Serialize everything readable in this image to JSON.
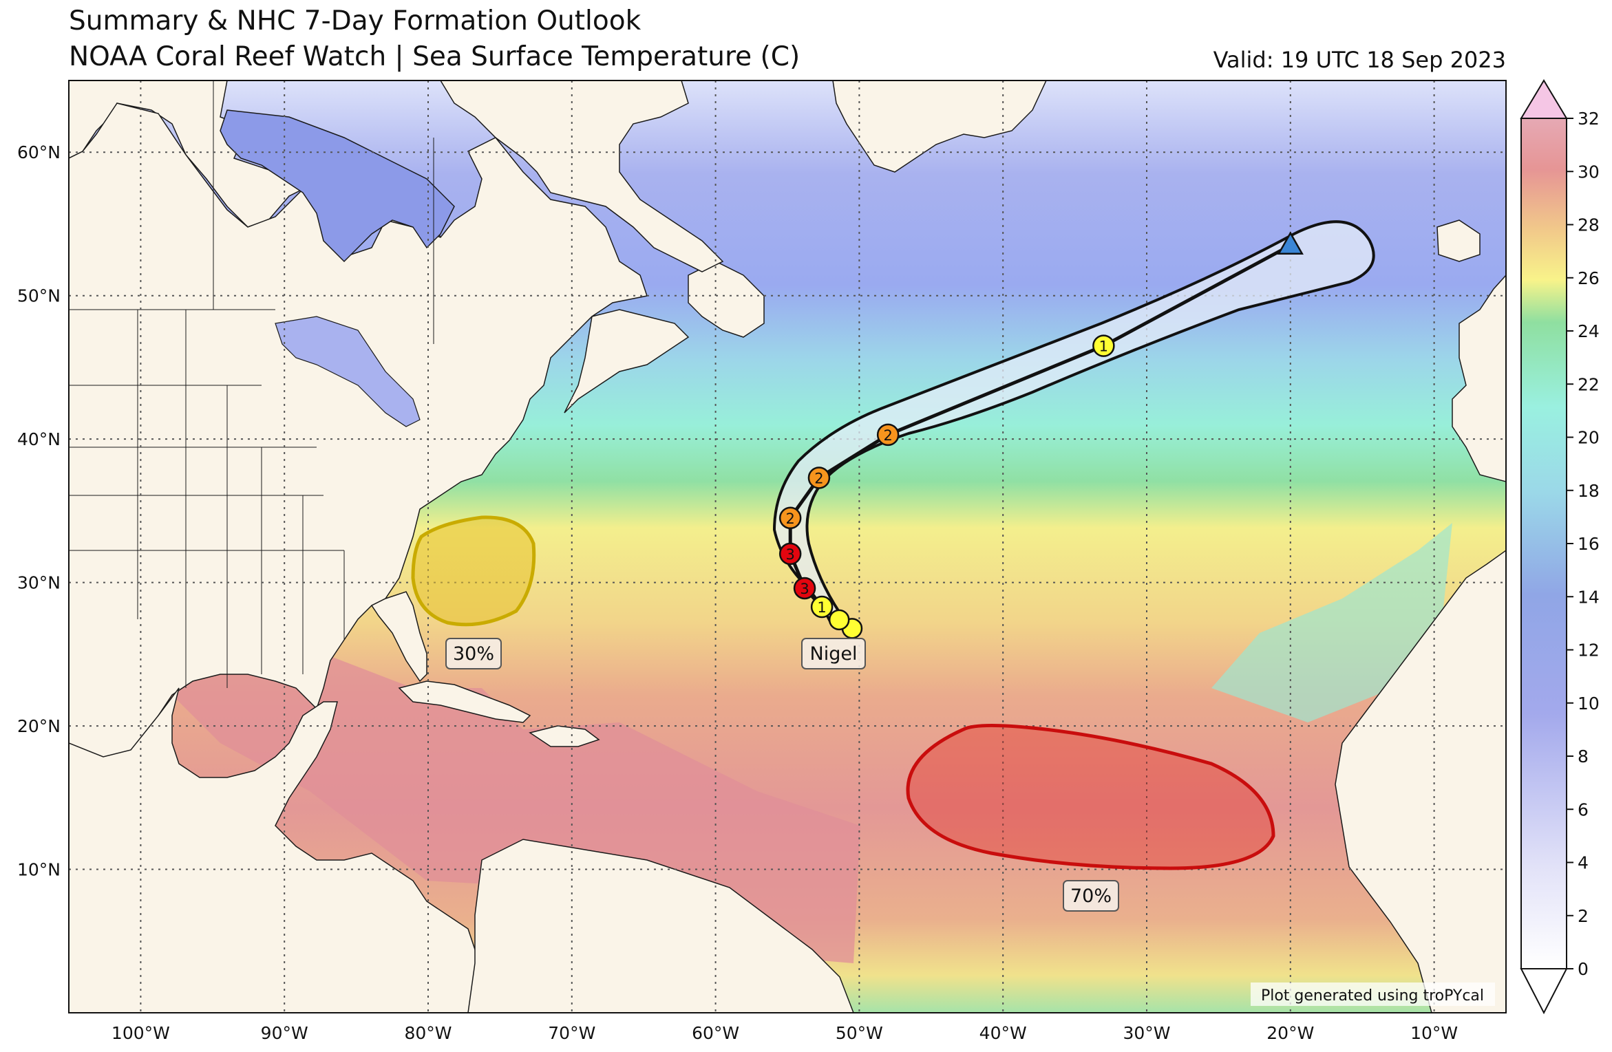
{
  "header": {
    "title_line1": "Summary & NHC 7-Day Formation Outlook",
    "title_line2": "NOAA Coral Reef Watch | Sea Surface Temperature (C)",
    "valid": "Valid: 19 UTC 18 Sep 2023"
  },
  "map": {
    "projection": "PlateCarree",
    "lon_range": [
      -105,
      -5
    ],
    "lat_range": [
      0,
      65
    ],
    "lon_ticks": [
      -100,
      -90,
      -80,
      -70,
      -60,
      -50,
      -40,
      -30,
      -20,
      -10
    ],
    "lon_tick_labels": [
      "100°W",
      "90°W",
      "80°W",
      "70°W",
      "60°W",
      "50°W",
      "40°W",
      "30°W",
      "20°W",
      "10°W"
    ],
    "lat_ticks": [
      10,
      20,
      30,
      40,
      50,
      60
    ],
    "lat_tick_labels": [
      "10°N",
      "20°N",
      "30°N",
      "40°N",
      "50°N",
      "60°N"
    ],
    "gridlines": true,
    "colors": {
      "land": "#faf4e8",
      "coast": "#1a1a1a",
      "grid": "#555555"
    }
  },
  "colorbar": {
    "ticks": [
      "0",
      "2",
      "4",
      "6",
      "8",
      "10",
      "12",
      "14",
      "16",
      "18",
      "20",
      "22",
      "24",
      "26",
      "28",
      "30",
      "32"
    ],
    "min": 0,
    "max": 32,
    "extend": "both"
  },
  "storm": {
    "name": "Nigel",
    "track": [
      {
        "lon": -50.5,
        "lat": 26.8,
        "cat": "TS"
      },
      {
        "lon": -51.4,
        "lat": 27.4,
        "cat": "TS"
      },
      {
        "lon": -52.6,
        "lat": 28.3,
        "cat": "1"
      },
      {
        "lon": -53.8,
        "lat": 29.6,
        "cat": "3"
      },
      {
        "lon": -54.8,
        "lat": 32.0,
        "cat": "3"
      },
      {
        "lon": -54.8,
        "lat": 34.5,
        "cat": "2"
      },
      {
        "lon": -52.8,
        "lat": 37.3,
        "cat": "2"
      },
      {
        "lon": -48.0,
        "lat": 40.3,
        "cat": "2"
      },
      {
        "lon": -33.0,
        "lat": 46.5,
        "cat": "1"
      },
      {
        "lon": -20.0,
        "lat": 53.5,
        "cat": "Post-tropical"
      }
    ],
    "marker_labels": [
      "1",
      "1",
      "2",
      "2",
      "2",
      "3",
      "3"
    ],
    "colors": {
      "TS": "#ffff33",
      "1": "#ffff33",
      "2": "#f7941d",
      "3": "#e3050f",
      "Post-tropical": "#3b86d6"
    }
  },
  "outlooks": [
    {
      "label": "30%",
      "center_lon": -77.0,
      "center_lat": 31.0,
      "color": "#e8c230"
    },
    {
      "label": "70%",
      "center_lon": -32.5,
      "center_lat": 15.0,
      "color": "#e1231b"
    }
  ],
  "credit": "Plot generated using troPYcal"
}
